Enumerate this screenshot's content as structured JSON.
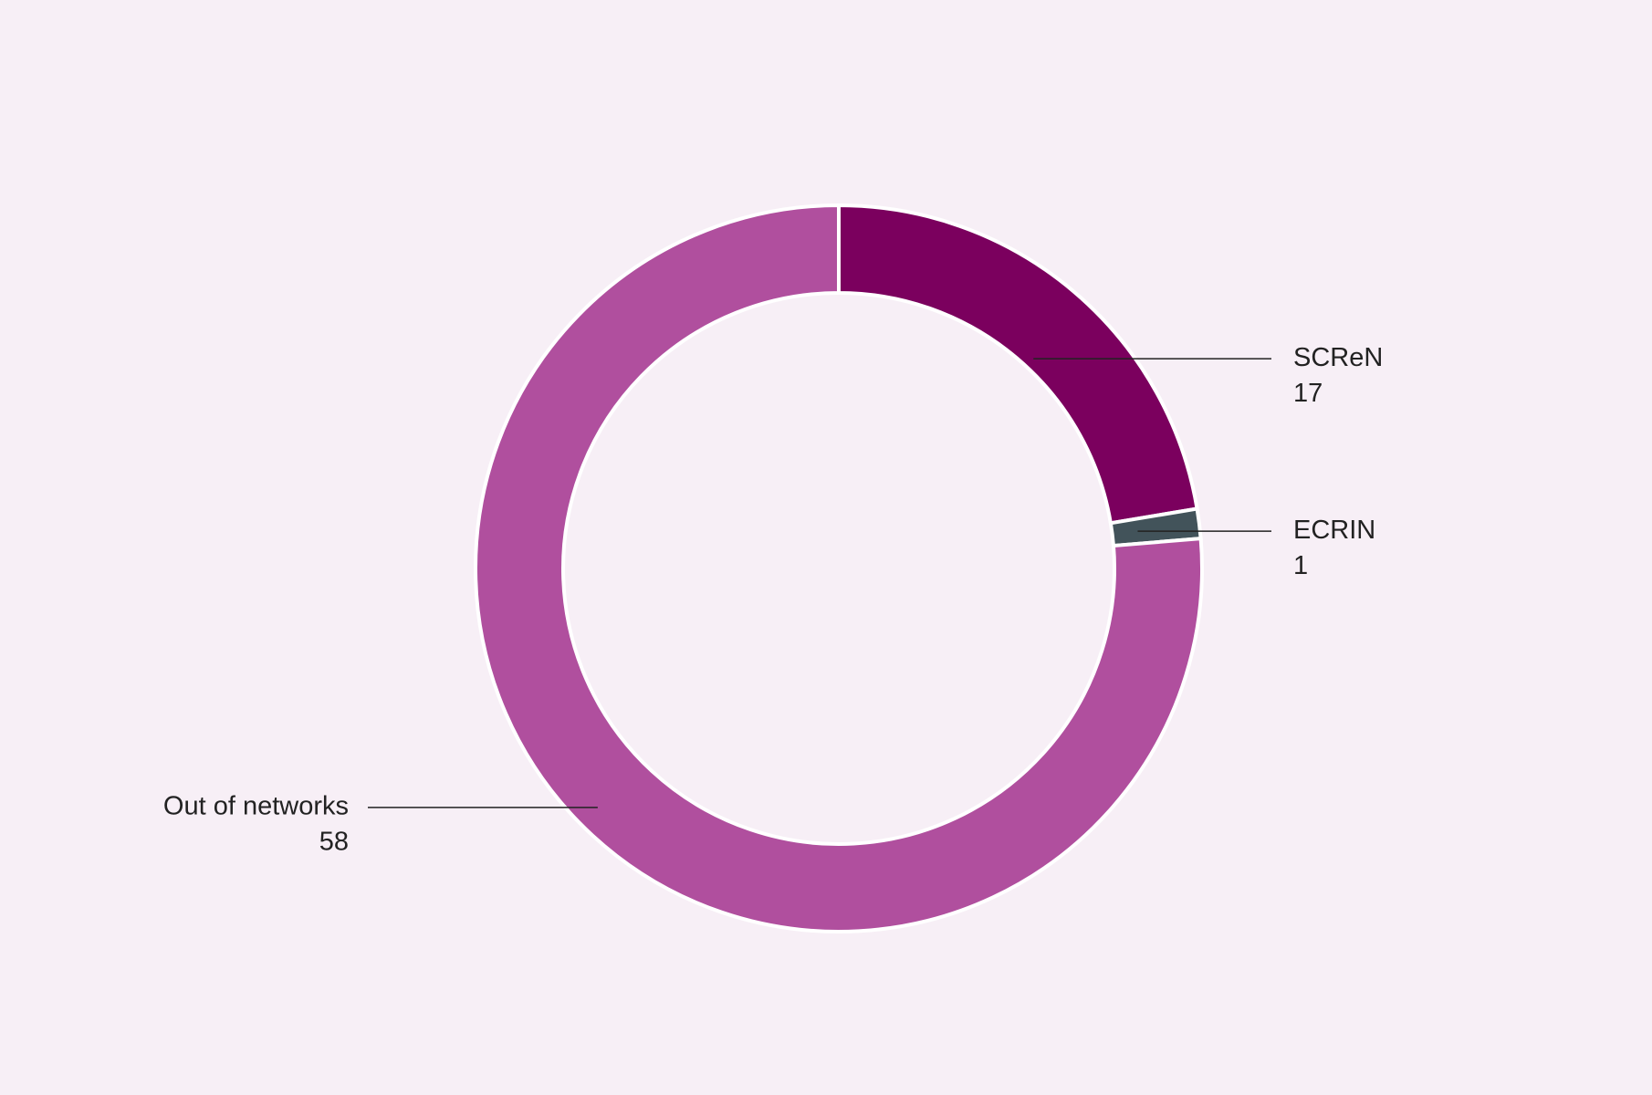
{
  "chart_data": {
    "type": "pie",
    "categories": [
      "SCReN",
      "ECRIN",
      "Out of networks"
    ],
    "values": [
      17,
      1,
      58
    ],
    "colors": [
      "#7b005e",
      "#42535a",
      "#b04f9e"
    ]
  }
}
